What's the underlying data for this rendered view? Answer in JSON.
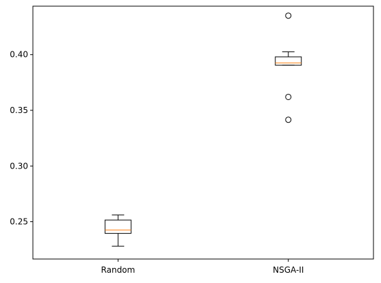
{
  "chart_data": {
    "type": "box",
    "title": "",
    "xlabel": "",
    "ylabel": "",
    "categories": [
      "Random",
      "NSGA-II"
    ],
    "ylim": [
      0.2165,
      0.4435
    ],
    "yticks": [
      0.25,
      0.3,
      0.35,
      0.4
    ],
    "ytick_labels": [
      "0.25",
      "0.30",
      "0.35",
      "0.40"
    ],
    "grid": false,
    "legend": "none",
    "boxes": [
      {
        "category": "Random",
        "whisker_low": 0.228,
        "q1": 0.2395,
        "median": 0.2425,
        "q3": 0.2515,
        "whisker_high": 0.256,
        "outliers": []
      },
      {
        "category": "NSGA-II",
        "whisker_low": 0.3905,
        "q1": 0.3905,
        "median": 0.3925,
        "q3": 0.398,
        "whisker_high": 0.4025,
        "outliers": [
          0.435,
          0.362,
          0.3415
        ]
      }
    ],
    "colors": {
      "box": "#000000",
      "median": "#ff7f0e",
      "outlier": "#000000"
    }
  }
}
